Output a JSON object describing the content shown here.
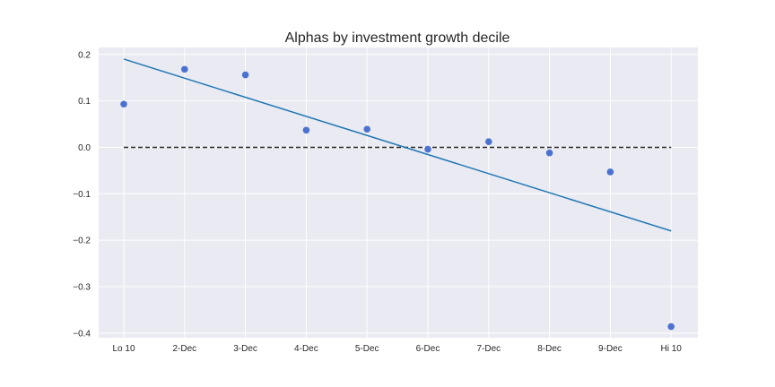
{
  "chart_data": {
    "type": "scatter",
    "title": "Alphas by investment growth decile",
    "xlabel": "",
    "ylabel": "",
    "categories": [
      "Lo 10",
      "2-Dec",
      "3-Dec",
      "4-Dec",
      "5-Dec",
      "6-Dec",
      "7-Dec",
      "8-Dec",
      "9-Dec",
      "Hi 10"
    ],
    "series": [
      {
        "values": [
          0.093,
          0.168,
          0.156,
          0.037,
          0.039,
          -0.004,
          0.012,
          -0.012,
          -0.053,
          -0.386
        ]
      }
    ],
    "trend_line": {
      "start": 0.19,
      "end": -0.18
    },
    "reference_line": {
      "y": 0.0,
      "style": "dashed"
    },
    "yticks": [
      0.2,
      0.1,
      0.0,
      -0.1,
      -0.2,
      -0.3,
      -0.4
    ],
    "ytick_labels": [
      "0.2",
      "0.1",
      "0.0",
      "−0.1",
      "−0.2",
      "−0.3",
      "−0.4"
    ],
    "ylim": [
      -0.41,
      0.215
    ],
    "grid": true,
    "colors": {
      "background": "#eaeaf2",
      "grid": "#ffffff",
      "points": "#4c72d0",
      "trend_line": "#1f77b4",
      "reference_line": "#262626"
    }
  }
}
